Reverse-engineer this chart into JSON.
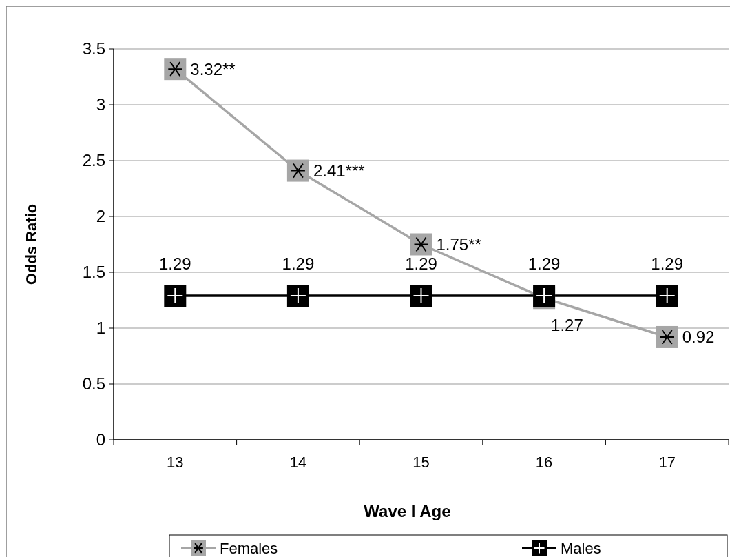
{
  "chart_data": {
    "type": "line",
    "xlabel": "Wave I Age",
    "ylabel": "Odds Ratio",
    "categories": [
      "13",
      "14",
      "15",
      "16",
      "17"
    ],
    "ylim": [
      0,
      3.5
    ],
    "yticks": [
      0,
      0.5,
      1,
      1.5,
      2,
      2.5,
      3,
      3.5
    ],
    "grid": "y",
    "legend": "bottom",
    "series": [
      {
        "name": "Females",
        "color": "#a6a6a6",
        "marker": "square",
        "values": [
          3.32,
          2.41,
          1.75,
          1.27,
          0.92
        ],
        "value_labels": [
          "3.32**",
          "2.41***",
          "1.75**",
          "1.27",
          "0.92"
        ]
      },
      {
        "name": "Males",
        "color": "#000000",
        "marker": "square",
        "values": [
          1.29,
          1.29,
          1.29,
          1.29,
          1.29
        ],
        "value_labels": [
          "1.29",
          "1.29",
          "1.29",
          "1.29",
          "1.29"
        ]
      }
    ]
  }
}
